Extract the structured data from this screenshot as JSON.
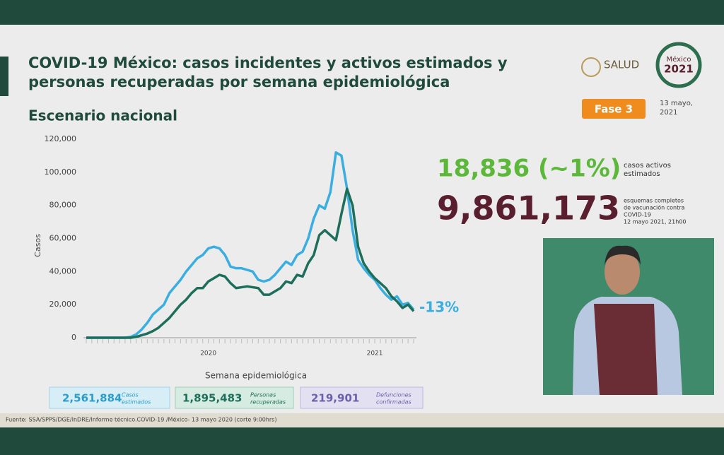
{
  "header": {
    "title_lines": [
      "COVID-19 México: casos incidentes y activos estimados y",
      "personas recuperadas por semana epidemiológica"
    ],
    "subtitle": "Escenario nacional",
    "logo": "SALUD",
    "logo2": [
      "México",
      "2021"
    ],
    "phase": "Fase 3",
    "date_lines": [
      "13 mayo,",
      "2021"
    ]
  },
  "stats": {
    "active": "18,836 (~1%)",
    "active_desc": [
      "casos activos",
      "estimados"
    ],
    "vaccines": "9,861,173",
    "vaccines_desc": [
      "esquemas completos",
      "de vacunación contra",
      "COVID-19",
      "12 mayo 2021, 21h00"
    ]
  },
  "boxes": [
    {
      "value": "2,561,884",
      "label": [
        "Casos",
        "estimados"
      ]
    },
    {
      "value": "1,895,483",
      "label": [
        "Personas",
        "recuperadas"
      ]
    },
    {
      "value": "219,901",
      "label": [
        "Defunciones",
        "confirmadas"
      ]
    }
  ],
  "footer": "Fuente: SSA/SPPS/DGE/InDRE/Informe técnico.COVID-19 /México- 13 mayo 2020 (corte 9:00hrs)",
  "chart_data": {
    "type": "line",
    "ylabel": "Casos",
    "xlabel": "Semana epidemiológica",
    "annotation": "-13%",
    "grid": false,
    "categories": [
      null,
      null,
      null,
      null,
      null,
      null,
      null,
      null,
      null,
      null,
      null,
      null,
      null,
      null,
      null,
      null,
      null,
      null,
      null,
      null,
      null,
      null,
      "2020",
      null,
      null,
      null,
      null,
      null,
      null,
      null,
      null,
      null,
      null,
      null,
      null,
      null,
      null,
      null,
      null,
      null,
      null,
      null,
      null,
      null,
      null,
      null,
      null,
      null,
      null,
      null,
      null,
      null,
      "2021",
      null,
      null,
      null,
      null,
      null,
      null,
      null
    ],
    "ylim": [
      0,
      120000
    ],
    "yticks": [
      0,
      {
        "value": 20000,
        "label": "20,000"
      },
      {
        "value": 40000,
        "label": "40,000"
      },
      {
        "value": 60000,
        "label": "60,000"
      },
      {
        "value": 80000,
        "label": "80,000"
      },
      {
        "value": 100000,
        "label": "100,000"
      },
      {
        "value": 120000,
        "label": "120,000"
      }
    ],
    "series": [
      {
        "color": "#3aaee0",
        "values": [
          0,
          0,
          0,
          0,
          0,
          0,
          0,
          0,
          500,
          2000,
          5000,
          9000,
          14000,
          17000,
          20000,
          27000,
          31000,
          35000,
          40000,
          44000,
          48000,
          50000,
          54000,
          55000,
          54000,
          50000,
          43000,
          42000,
          42000,
          41000,
          40000,
          35000,
          34000,
          35000,
          38000,
          42000,
          46000,
          44000,
          50000,
          52000,
          60000,
          72000,
          80000,
          78000,
          88000,
          112000,
          110000,
          90000,
          65000,
          47000,
          42000,
          38000,
          35000,
          30000,
          26000,
          23000,
          25000,
          20000,
          21000,
          17000
        ]
      },
      {
        "color": "#1d6e5a",
        "values": [
          0,
          0,
          0,
          0,
          0,
          0,
          0,
          0,
          0,
          500,
          1500,
          2500,
          4000,
          6000,
          9000,
          12000,
          16000,
          20000,
          23000,
          27000,
          30000,
          30000,
          34000,
          36000,
          38000,
          37000,
          33000,
          30000,
          30500,
          31000,
          30500,
          30000,
          26000,
          26000,
          28000,
          30000,
          34000,
          33000,
          38000,
          37000,
          45000,
          50000,
          62000,
          65000,
          62000,
          59000,
          75000,
          90000,
          80000,
          55000,
          45000,
          40000,
          36000,
          33000,
          30000,
          25000,
          22000,
          18000,
          20000,
          16000
        ]
      }
    ]
  }
}
